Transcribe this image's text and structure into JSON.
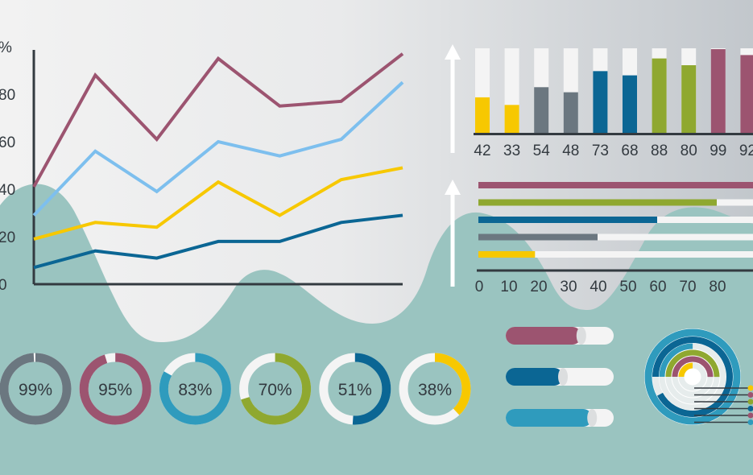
{
  "colors": {
    "bg_light": "#f1f1f1",
    "bg_dark": "#c4c9ce",
    "wave": "#9ac4c0",
    "axis": "#333a40",
    "track": "#f4f4f4",
    "maroon": "#9c5470",
    "lightblue": "#7dbfee",
    "yellow": "#f7c800",
    "darkblue": "#0b6694",
    "gray": "#6b7780",
    "green": "#8fa830",
    "teal": "#2f9bbd"
  },
  "chart_data": [
    {
      "type": "line",
      "title": "",
      "y_ticks": [
        "0",
        "20",
        "40",
        "60",
        "80",
        "%"
      ],
      "ylim": [
        0,
        100
      ],
      "x": [
        1,
        2,
        3,
        4,
        5,
        6,
        7
      ],
      "grid": false,
      "series": [
        {
          "color": "maroon",
          "values": [
            41,
            88,
            61,
            95,
            75,
            77,
            97
          ]
        },
        {
          "color": "lightblue",
          "values": [
            29,
            56,
            39,
            60,
            54,
            61,
            85
          ]
        },
        {
          "color": "yellow",
          "values": [
            19,
            26,
            24,
            43,
            29,
            44,
            49
          ]
        },
        {
          "color": "darkblue",
          "values": [
            7,
            14,
            11,
            18,
            18,
            26,
            29
          ]
        }
      ]
    },
    {
      "type": "bar",
      "orientation": "vertical",
      "ylim": [
        0,
        100
      ],
      "categories": [
        "42",
        "33",
        "54",
        "48",
        "73",
        "68",
        "88",
        "80",
        "99",
        "92"
      ],
      "values": [
        42,
        33,
        54,
        48,
        73,
        68,
        88,
        80,
        99,
        92
      ],
      "colors": [
        "yellow",
        "yellow",
        "gray",
        "gray",
        "darkblue",
        "darkblue",
        "green",
        "green",
        "maroon",
        "maroon"
      ]
    },
    {
      "type": "bar",
      "orientation": "horizontal",
      "xlim": [
        0,
        100
      ],
      "x_ticks": [
        "0",
        "10",
        "20",
        "30",
        "40",
        "50",
        "60",
        "70",
        "80"
      ],
      "values": [
        100,
        80,
        60,
        40,
        19
      ],
      "colors": [
        "maroon",
        "green",
        "darkblue",
        "gray",
        "yellow"
      ]
    },
    {
      "type": "pie",
      "style": "donut",
      "items": [
        {
          "label": "99%",
          "value": 99,
          "color": "gray"
        },
        {
          "label": "95%",
          "value": 95,
          "color": "maroon"
        },
        {
          "label": "83%",
          "value": 83,
          "color": "teal"
        },
        {
          "label": "70%",
          "value": 70,
          "color": "green"
        },
        {
          "label": "51%",
          "value": 51,
          "color": "darkblue"
        },
        {
          "label": "38%",
          "value": 38,
          "color": "yellow"
        }
      ]
    },
    {
      "type": "bar",
      "style": "pill",
      "values": [
        70,
        53,
        80
      ],
      "colors": [
        "maroon",
        "darkblue",
        "teal"
      ]
    },
    {
      "type": "pie",
      "style": "concentric-rings",
      "rings": [
        {
          "color": "teal",
          "value": 100
        },
        {
          "color": "darkblue",
          "value": 92
        },
        {
          "color": "teal",
          "value": 25
        },
        {
          "color": "green",
          "value": 50
        },
        {
          "color": "maroon",
          "value": 50
        },
        {
          "color": "yellow",
          "value": 25
        }
      ]
    }
  ]
}
